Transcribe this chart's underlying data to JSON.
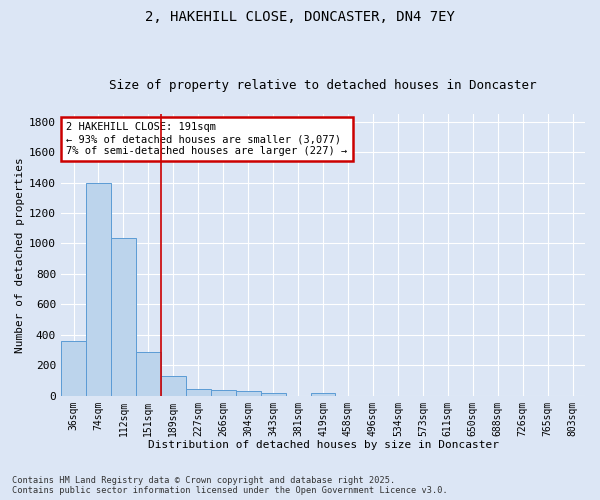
{
  "title_line1": "2, HAKEHILL CLOSE, DONCASTER, DN4 7EY",
  "title_line2": "Size of property relative to detached houses in Doncaster",
  "xlabel": "Distribution of detached houses by size in Doncaster",
  "ylabel": "Number of detached properties",
  "categories": [
    "36sqm",
    "74sqm",
    "112sqm",
    "151sqm",
    "189sqm",
    "227sqm",
    "266sqm",
    "304sqm",
    "343sqm",
    "381sqm",
    "419sqm",
    "458sqm",
    "496sqm",
    "534sqm",
    "573sqm",
    "611sqm",
    "650sqm",
    "688sqm",
    "726sqm",
    "765sqm",
    "803sqm"
  ],
  "values": [
    360,
    1400,
    1035,
    290,
    130,
    42,
    37,
    28,
    20,
    0,
    20,
    0,
    0,
    0,
    0,
    0,
    0,
    0,
    0,
    0,
    0
  ],
  "bar_color": "#bcd4ec",
  "bar_edge_color": "#5b9bd5",
  "vline_x": 3.5,
  "vline_color": "#cc0000",
  "annotation_text": "2 HAKEHILL CLOSE: 191sqm\n← 93% of detached houses are smaller (3,077)\n7% of semi-detached houses are larger (227) →",
  "annotation_box_color": "#ffffff",
  "annotation_box_edge_color": "#cc0000",
  "ylim": [
    0,
    1850
  ],
  "yticks": [
    0,
    200,
    400,
    600,
    800,
    1000,
    1200,
    1400,
    1600,
    1800
  ],
  "background_color": "#dce6f5",
  "plot_bg_color": "#dce6f5",
  "grid_color": "#ffffff",
  "footer_line1": "Contains HM Land Registry data © Crown copyright and database right 2025.",
  "footer_line2": "Contains public sector information licensed under the Open Government Licence v3.0.",
  "title_fontsize": 10,
  "subtitle_fontsize": 9,
  "tick_fontsize": 7,
  "label_fontsize": 8,
  "annot_fontsize": 7.5
}
